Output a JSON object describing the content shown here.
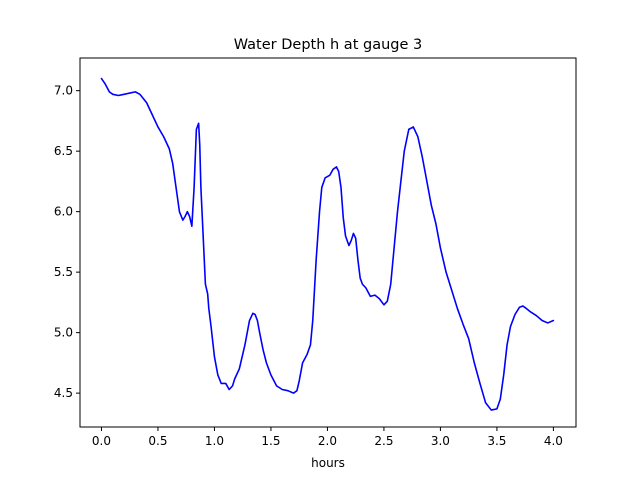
{
  "chart_data": {
    "type": "line",
    "title": "Water Depth h at gauge 3",
    "xlabel": "hours",
    "ylabel": "",
    "xlim": [
      -0.19,
      4.2
    ],
    "ylim": [
      4.22,
      7.27
    ],
    "xticks": [
      0.0,
      0.5,
      1.0,
      1.5,
      2.0,
      2.5,
      3.0,
      3.5,
      4.0
    ],
    "xtick_labels": [
      "0.0",
      "0.5",
      "1.0",
      "1.5",
      "2.0",
      "2.5",
      "3.0",
      "3.5",
      "4.0"
    ],
    "yticks": [
      4.5,
      5.0,
      5.5,
      6.0,
      6.5,
      7.0
    ],
    "ytick_labels": [
      "4.5",
      "5.0",
      "5.5",
      "6.0",
      "6.5",
      "7.0"
    ],
    "grid": false,
    "series": [
      {
        "color": "#0000ff",
        "x": [
          0.0,
          0.03,
          0.07,
          0.1,
          0.15,
          0.2,
          0.25,
          0.3,
          0.34,
          0.4,
          0.45,
          0.5,
          0.55,
          0.6,
          0.63,
          0.66,
          0.69,
          0.72,
          0.74,
          0.76,
          0.78,
          0.8,
          0.82,
          0.84,
          0.86,
          0.87,
          0.88,
          0.9,
          0.92,
          0.94,
          0.95,
          0.97,
          1.0,
          1.03,
          1.06,
          1.1,
          1.13,
          1.16,
          1.18,
          1.22,
          1.27,
          1.31,
          1.34,
          1.36,
          1.38,
          1.4,
          1.43,
          1.46,
          1.5,
          1.55,
          1.6,
          1.65,
          1.7,
          1.73,
          1.75,
          1.78,
          1.82,
          1.85,
          1.87,
          1.9,
          1.93,
          1.95,
          1.98,
          2.0,
          2.02,
          2.05,
          2.08,
          2.1,
          2.12,
          2.14,
          2.16,
          2.19,
          2.21,
          2.23,
          2.25,
          2.27,
          2.29,
          2.31,
          2.34,
          2.38,
          2.42,
          2.46,
          2.5,
          2.53,
          2.56,
          2.59,
          2.62,
          2.65,
          2.68,
          2.72,
          2.76,
          2.8,
          2.84,
          2.88,
          2.92,
          2.96,
          3.0,
          3.05,
          3.1,
          3.15,
          3.2,
          3.25,
          3.3,
          3.35,
          3.4,
          3.45,
          3.5,
          3.53,
          3.56,
          3.59,
          3.62,
          3.66,
          3.7,
          3.73,
          3.76,
          3.8,
          3.85,
          3.9,
          3.95,
          4.0
        ],
        "y": [
          7.1,
          7.06,
          6.99,
          6.97,
          6.96,
          6.97,
          6.98,
          6.99,
          6.97,
          6.9,
          6.8,
          6.7,
          6.62,
          6.52,
          6.4,
          6.2,
          6.0,
          5.93,
          5.96,
          6.0,
          5.96,
          5.88,
          6.2,
          6.68,
          6.73,
          6.55,
          6.2,
          5.8,
          5.4,
          5.32,
          5.2,
          5.05,
          4.8,
          4.65,
          4.58,
          4.58,
          4.53,
          4.56,
          4.62,
          4.7,
          4.9,
          5.1,
          5.16,
          5.15,
          5.1,
          5.0,
          4.86,
          4.75,
          4.65,
          4.56,
          4.53,
          4.52,
          4.5,
          4.52,
          4.6,
          4.75,
          4.82,
          4.9,
          5.1,
          5.6,
          6.0,
          6.2,
          6.28,
          6.29,
          6.3,
          6.35,
          6.37,
          6.33,
          6.2,
          5.95,
          5.8,
          5.72,
          5.76,
          5.82,
          5.78,
          5.6,
          5.45,
          5.4,
          5.37,
          5.3,
          5.31,
          5.28,
          5.23,
          5.26,
          5.4,
          5.7,
          6.0,
          6.25,
          6.5,
          6.68,
          6.7,
          6.62,
          6.45,
          6.25,
          6.05,
          5.9,
          5.7,
          5.5,
          5.35,
          5.2,
          5.07,
          4.95,
          4.75,
          4.58,
          4.42,
          4.36,
          4.37,
          4.45,
          4.65,
          4.9,
          5.05,
          5.15,
          5.21,
          5.22,
          5.2,
          5.17,
          5.14,
          5.1,
          5.08,
          5.1
        ]
      }
    ]
  }
}
